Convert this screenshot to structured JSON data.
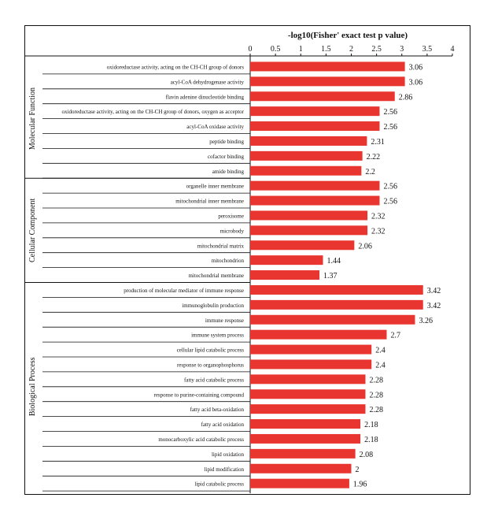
{
  "chart_data": {
    "type": "bar",
    "orientation": "horizontal",
    "title": "-log10(Fisher' exact test p value)",
    "xlim": [
      0,
      4
    ],
    "xticks": [
      "0",
      "0.5",
      "1",
      "1.5",
      "2",
      "2.5",
      "3",
      "3.5",
      "4"
    ],
    "bar_color": "#e8352f",
    "groups": [
      {
        "name": "Molecular Function",
        "categories": [
          "oxidoreductase activity, acting on the CH-CH group of donors",
          "acyl-CoA dehydrogenase activity",
          "flavin adenine dinucleotide binding",
          "oxidoreductase activity, acting on the CH-CH group of donors, oxygen as acceptor",
          "acyl-CoA oxidase activity",
          "peptide binding",
          "cofactor binding",
          "amide binding"
        ],
        "values": [
          3.06,
          3.06,
          2.86,
          2.56,
          2.56,
          2.31,
          2.22,
          2.2
        ],
        "labels": [
          "3.06",
          "3.06",
          "2.86",
          "2.56",
          "2.56",
          "2.31",
          "2.22",
          "2.2"
        ]
      },
      {
        "name": "Cellular Component",
        "categories": [
          "organelle inner membrane",
          "mitochondrial inner membrane",
          "peroxisome",
          "microbody",
          "mitochondrial matrix",
          "mitochondrion",
          "mitochondrial membrane"
        ],
        "values": [
          2.56,
          2.56,
          2.32,
          2.32,
          2.06,
          1.44,
          1.37
        ],
        "labels": [
          "2.56",
          "2.56",
          "2.32",
          "2.32",
          "2.06",
          "1.44",
          "1.37"
        ]
      },
      {
        "name": "Biological Process",
        "categories": [
          "production of molecular mediator of immune response",
          "immunoglobulin production",
          "immune response",
          "immune system process",
          "cellular lipid catabolic process",
          "response to organophosphorus",
          "fatty acid catabolic process",
          "response to purine-containing compound",
          "fatty acid beta-oxidation",
          "fatty acid oxidation",
          "monocarboxylic acid catabolic process",
          "lipid oxidation",
          "lipid modification",
          "lipid catabolic process"
        ],
        "values": [
          3.42,
          3.42,
          3.26,
          2.7,
          2.4,
          2.4,
          2.28,
          2.28,
          2.28,
          2.18,
          2.18,
          2.08,
          2,
          1.96
        ],
        "labels": [
          "3.42",
          "3.42",
          "3.26",
          "2.7",
          "2.4",
          "2.4",
          "2.28",
          "2.28",
          "2.28",
          "2.18",
          "2.18",
          "2.08",
          "2",
          "1.96"
        ]
      }
    ]
  }
}
